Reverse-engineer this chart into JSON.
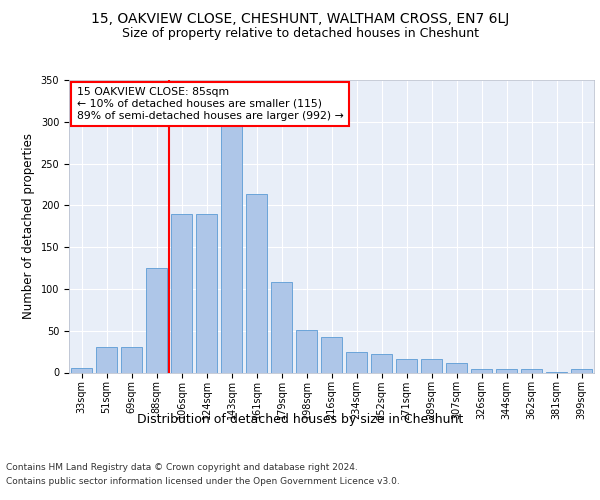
{
  "title": "15, OAKVIEW CLOSE, CHESHUNT, WALTHAM CROSS, EN7 6LJ",
  "subtitle": "Size of property relative to detached houses in Cheshunt",
  "xlabel_bottom": "Distribution of detached houses by size in Cheshunt",
  "ylabel": "Number of detached properties",
  "categories": [
    "33sqm",
    "51sqm",
    "69sqm",
    "88sqm",
    "106sqm",
    "124sqm",
    "143sqm",
    "161sqm",
    "179sqm",
    "198sqm",
    "216sqm",
    "234sqm",
    "252sqm",
    "271sqm",
    "289sqm",
    "307sqm",
    "326sqm",
    "344sqm",
    "362sqm",
    "381sqm",
    "399sqm"
  ],
  "values": [
    5,
    30,
    30,
    125,
    190,
    190,
    295,
    213,
    108,
    51,
    42,
    24,
    22,
    16,
    16,
    11,
    4,
    4,
    4,
    1,
    4
  ],
  "bar_color": "#aec6e8",
  "bar_edge_color": "#5b9bd5",
  "vline_x": 3.5,
  "vline_color": "red",
  "annotation_text": "15 OAKVIEW CLOSE: 85sqm\n← 10% of detached houses are smaller (115)\n89% of semi-detached houses are larger (992) →",
  "annotation_box_color": "white",
  "annotation_box_edge_color": "red",
  "ylim": [
    0,
    350
  ],
  "yticks": [
    0,
    50,
    100,
    150,
    200,
    250,
    300,
    350
  ],
  "bg_color": "#e8eef8",
  "grid_color": "white",
  "footer1": "Contains HM Land Registry data © Crown copyright and database right 2024.",
  "footer2": "Contains public sector information licensed under the Open Government Licence v3.0.",
  "title_fontsize": 10,
  "subtitle_fontsize": 9,
  "tick_fontsize": 7,
  "ylabel_fontsize": 8.5,
  "footer_fontsize": 6.5,
  "xlabel_fontsize": 9
}
